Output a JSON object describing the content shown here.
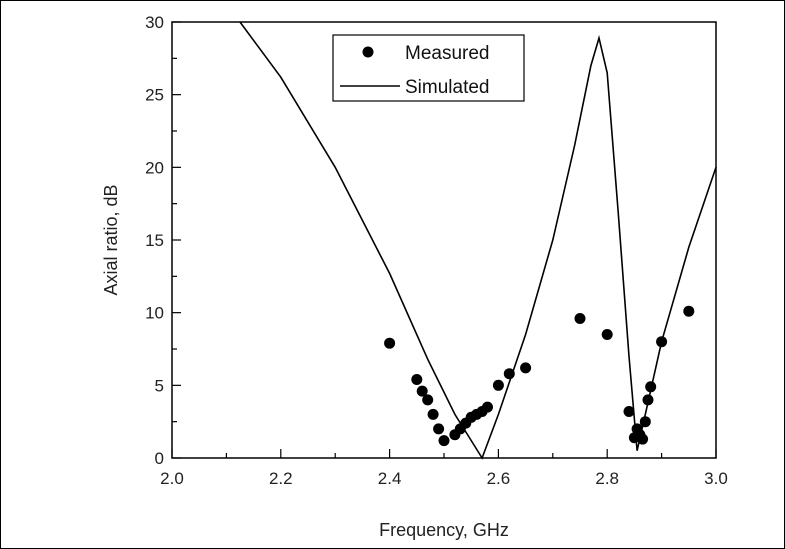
{
  "chart_data": {
    "type": "line",
    "title": "",
    "xlabel": "Frequency, GHz",
    "ylabel": "Axial ratio, dB",
    "xlim": [
      2.0,
      3.0
    ],
    "ylim": [
      0,
      30
    ],
    "x_ticks": [
      "2.0",
      "2.2",
      "2.4",
      "2.6",
      "2.8",
      "3.0"
    ],
    "y_ticks": [
      "0",
      "5",
      "10",
      "15",
      "20",
      "25",
      "30"
    ],
    "grid": false,
    "legend_position": "top-center",
    "series": [
      {
        "name": "Measured",
        "kind": "scatter",
        "color": "#000000",
        "points": [
          [
            2.4,
            7.9
          ],
          [
            2.45,
            5.4
          ],
          [
            2.46,
            4.6
          ],
          [
            2.47,
            4.0
          ],
          [
            2.48,
            3.0
          ],
          [
            2.49,
            2.0
          ],
          [
            2.5,
            1.2
          ],
          [
            2.52,
            1.6
          ],
          [
            2.53,
            2.0
          ],
          [
            2.54,
            2.4
          ],
          [
            2.55,
            2.8
          ],
          [
            2.56,
            3.0
          ],
          [
            2.57,
            3.2
          ],
          [
            2.58,
            3.5
          ],
          [
            2.6,
            5.0
          ],
          [
            2.62,
            5.8
          ],
          [
            2.65,
            6.2
          ],
          [
            2.75,
            9.6
          ],
          [
            2.8,
            8.5
          ],
          [
            2.84,
            3.2
          ],
          [
            2.85,
            1.4
          ],
          [
            2.855,
            2.0
          ],
          [
            2.86,
            1.6
          ],
          [
            2.865,
            1.3
          ],
          [
            2.87,
            2.5
          ],
          [
            2.875,
            4.0
          ],
          [
            2.88,
            4.9
          ],
          [
            2.9,
            8.0
          ],
          [
            2.95,
            10.1
          ]
        ]
      },
      {
        "name": "Simulated",
        "kind": "line",
        "color": "#000000",
        "points": [
          [
            2.125,
            30
          ],
          [
            2.2,
            26.2
          ],
          [
            2.3,
            20.0
          ],
          [
            2.4,
            12.7
          ],
          [
            2.47,
            6.8
          ],
          [
            2.52,
            3.0
          ],
          [
            2.57,
            0
          ],
          [
            2.6,
            3.0
          ],
          [
            2.65,
            8.5
          ],
          [
            2.7,
            15.0
          ],
          [
            2.74,
            21.5
          ],
          [
            2.77,
            27.0
          ],
          [
            2.785,
            28.9
          ],
          [
            2.8,
            26.5
          ],
          [
            2.82,
            17.0
          ],
          [
            2.84,
            7.0
          ],
          [
            2.855,
            0.5
          ],
          [
            2.87,
            3.0
          ],
          [
            2.9,
            8.0
          ],
          [
            2.95,
            14.5
          ],
          [
            3.0,
            20.0
          ]
        ]
      }
    ]
  }
}
